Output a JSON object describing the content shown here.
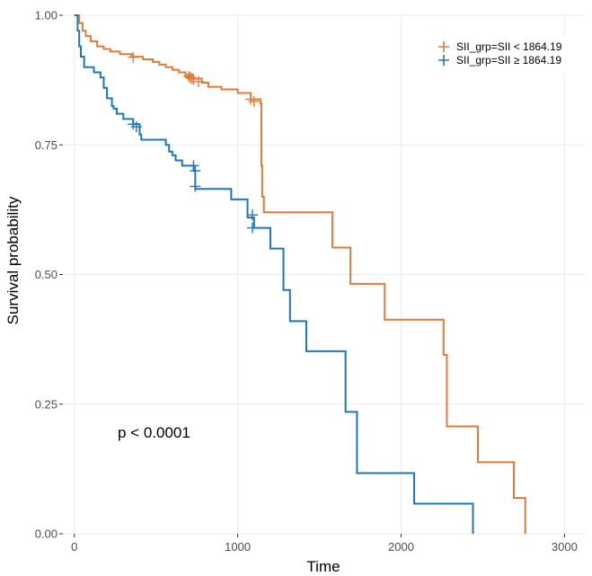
{
  "chart_data": {
    "type": "line",
    "subtype": "kaplan-meier",
    "xlabel": "Time",
    "ylabel": "Survival probability",
    "xlim": [
      -70,
      3130
    ],
    "ylim": [
      0,
      1
    ],
    "x_ticks": [
      0,
      1000,
      2000,
      3000
    ],
    "x_tick_labels": [
      "0",
      "1000",
      "2000",
      "3000"
    ],
    "y_ticks": [
      0,
      0.25,
      0.5,
      0.75,
      1.0
    ],
    "y_tick_labels": [
      "0.00",
      "0.25",
      "0.50",
      "0.75",
      "1.00"
    ],
    "grid": true,
    "legend_position": "top-right",
    "annotation": "p < 0.0001",
    "series": [
      {
        "name": "SII_grp=SII < 1864.19",
        "color": "#E07B39",
        "steps": [
          [
            0,
            1.0
          ],
          [
            30,
            0.985
          ],
          [
            50,
            0.97
          ],
          [
            70,
            0.96
          ],
          [
            100,
            0.95
          ],
          [
            140,
            0.94
          ],
          [
            180,
            0.935
          ],
          [
            220,
            0.93
          ],
          [
            280,
            0.925
          ],
          [
            350,
            0.92
          ],
          [
            420,
            0.915
          ],
          [
            480,
            0.91
          ],
          [
            520,
            0.905
          ],
          [
            560,
            0.9
          ],
          [
            600,
            0.895
          ],
          [
            640,
            0.89
          ],
          [
            680,
            0.885
          ],
          [
            720,
            0.878
          ],
          [
            780,
            0.87
          ],
          [
            820,
            0.862
          ],
          [
            900,
            0.857
          ],
          [
            1000,
            0.85
          ],
          [
            1080,
            0.838
          ],
          [
            1140,
            0.83
          ],
          [
            1145,
            0.71
          ],
          [
            1150,
            0.65
          ],
          [
            1160,
            0.62
          ],
          [
            1580,
            0.552
          ],
          [
            1690,
            0.482
          ],
          [
            1900,
            0.413
          ],
          [
            2260,
            0.345
          ],
          [
            2280,
            0.207
          ],
          [
            2470,
            0.138
          ],
          [
            2690,
            0.069
          ],
          [
            2760,
            0.0
          ]
        ],
        "censored": [
          [
            360,
            0.919
          ],
          [
            700,
            0.882
          ],
          [
            710,
            0.88
          ],
          [
            720,
            0.878
          ],
          [
            730,
            0.877
          ],
          [
            760,
            0.872
          ],
          [
            1080,
            0.838
          ],
          [
            1100,
            0.834
          ]
        ]
      },
      {
        "name": "SII_grp=SII ≥ 1864.19",
        "color": "#1F77B4",
        "steps": [
          [
            0,
            1.0
          ],
          [
            20,
            0.97
          ],
          [
            30,
            0.94
          ],
          [
            40,
            0.92
          ],
          [
            60,
            0.9
          ],
          [
            120,
            0.89
          ],
          [
            160,
            0.88
          ],
          [
            180,
            0.86
          ],
          [
            200,
            0.84
          ],
          [
            230,
            0.825
          ],
          [
            240,
            0.82
          ],
          [
            260,
            0.81
          ],
          [
            300,
            0.8
          ],
          [
            360,
            0.79
          ],
          [
            400,
            0.77
          ],
          [
            410,
            0.76
          ],
          [
            560,
            0.75
          ],
          [
            580,
            0.737
          ],
          [
            600,
            0.73
          ],
          [
            620,
            0.72
          ],
          [
            660,
            0.71
          ],
          [
            730,
            0.7
          ],
          [
            740,
            0.665
          ],
          [
            960,
            0.645
          ],
          [
            1060,
            0.61
          ],
          [
            1100,
            0.59
          ],
          [
            1200,
            0.55
          ],
          [
            1280,
            0.47
          ],
          [
            1320,
            0.41
          ],
          [
            1420,
            0.352
          ],
          [
            1660,
            0.235
          ],
          [
            1730,
            0.117
          ],
          [
            2080,
            0.058
          ],
          [
            2440,
            0.0
          ]
        ],
        "censored": [
          [
            360,
            0.79
          ],
          [
            380,
            0.785
          ],
          [
            730,
            0.71
          ],
          [
            740,
            0.7
          ],
          [
            740,
            0.67
          ],
          [
            1090,
            0.615
          ],
          [
            1090,
            0.59
          ]
        ]
      }
    ]
  }
}
